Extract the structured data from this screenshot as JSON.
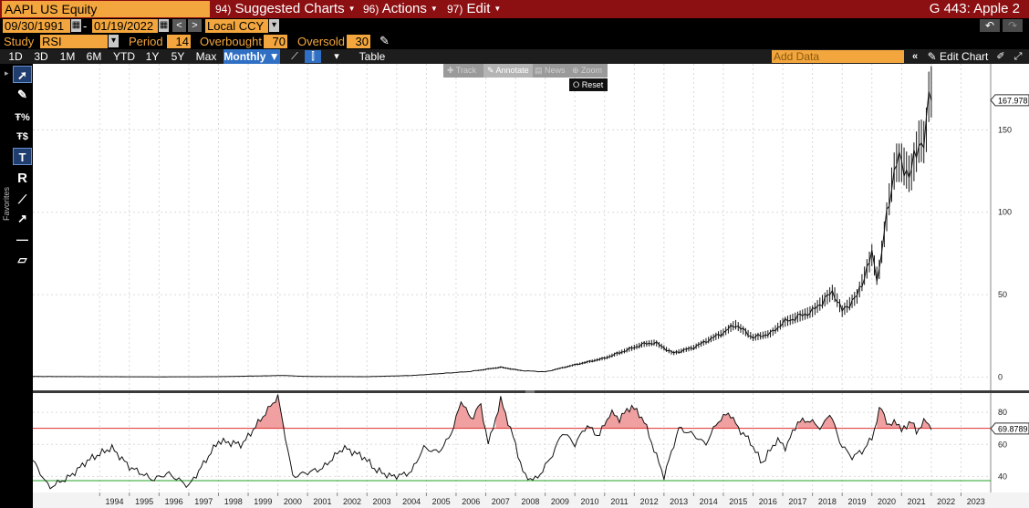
{
  "topbar": {
    "ticker": "AAPL US Equity",
    "menus": [
      {
        "num": "94)",
        "label": "Suggested Charts"
      },
      {
        "num": "96)",
        "label": "Actions"
      },
      {
        "num": "97)",
        "label": "Edit"
      }
    ],
    "app_name": "G 443: Apple 2"
  },
  "daterow": {
    "start_date": "09/30/1991",
    "separator": "-",
    "end_date": "01/19/2022",
    "currency": "Local CCY",
    "prev_icon": "<",
    "next_icon": ">",
    "undo_icon": "undo-icon",
    "redo_icon": "redo-icon"
  },
  "studyrow": {
    "study_label": "Study",
    "study_value": "RSI",
    "period_label": "Period",
    "period_value": "14",
    "overbought_label": "Overbought",
    "overbought_value": "70",
    "oversold_label": "Oversold",
    "oversold_value": "30"
  },
  "periodrow": {
    "periods": [
      "1D",
      "3D",
      "1M",
      "6M",
      "YTD",
      "1Y",
      "5Y",
      "Max"
    ],
    "frequency": "Monthly ▼",
    "table_label": "Table",
    "add_data_placeholder": "Add Data",
    "edit_chart_label": "Edit Chart"
  },
  "left_toolbar": {
    "favorites_label": "Favorites",
    "tools": [
      "pointer-icon",
      "pen-icon",
      "percent-line-icon",
      "dollar-line-icon",
      "text-icon",
      "r-label-icon",
      "line-icon",
      "arrow-line-icon",
      "horizontal-line-icon",
      "channel-icon"
    ]
  },
  "chart_overlay": {
    "buttons": [
      "Track",
      "Annotate",
      "News",
      "Zoom"
    ],
    "active": "Annotate",
    "reset_label": "Reset"
  },
  "colors": {
    "accent": "#f3a63d",
    "topbar": "#8c0f12",
    "selected": "#2f6fc4",
    "overbought_line": "#e03030",
    "oversold_line": "#20a020",
    "fill_overbought": "#f0a0a0"
  },
  "chart_data": [
    {
      "type": "line",
      "title": "",
      "xlabel": "",
      "ylabel": "",
      "x_ticks": [
        "1994",
        "1995",
        "1996",
        "1997",
        "1998",
        "1999",
        "2000",
        "2001",
        "2002",
        "2003",
        "2004",
        "2005",
        "2006",
        "2007",
        "2008",
        "2009",
        "2010",
        "2011",
        "2012",
        "2013",
        "2014",
        "2015",
        "2016",
        "2017",
        "2018",
        "2019",
        "2020",
        "2021",
        "2022",
        "2023"
      ],
      "y_ticks": [
        0,
        50,
        100,
        150
      ],
      "ylim": [
        -8,
        190
      ],
      "last_value_label": "167.978",
      "x": [
        1991.75,
        1994,
        1996,
        1998,
        2000.2,
        2001,
        2003,
        2004.5,
        2005.5,
        2006.5,
        2007.5,
        2008.2,
        2009.0,
        2010.0,
        2011.0,
        2012.3,
        2012.7,
        2013.3,
        2014.0,
        2015.0,
        2015.4,
        2016.0,
        2016.6,
        2017.0,
        2018.0,
        2018.7,
        2019.0,
        2019.5,
        2020.0,
        2020.2,
        2020.6,
        2020.8,
        2021.0,
        2021.3,
        2021.6,
        2021.8,
        2021.95,
        2022.05
      ],
      "y": [
        0.4,
        0.3,
        0.2,
        0.3,
        1.0,
        0.4,
        0.3,
        1.0,
        2.2,
        3.5,
        6.0,
        4.0,
        3.2,
        7.5,
        11.5,
        20.0,
        21.0,
        14.5,
        18.0,
        27.0,
        32.0,
        24.0,
        26.5,
        33.0,
        40.0,
        52.0,
        40.0,
        49.0,
        74.0,
        59.0,
        110.0,
        130.0,
        130.0,
        122.0,
        144.0,
        142.0,
        178.0,
        168.0
      ]
    },
    {
      "type": "line",
      "title": "",
      "series": [
        {
          "name": "RSI",
          "values": [
            50,
            33,
            40,
            50,
            58,
            46,
            38,
            42,
            34,
            62,
            60,
            90,
            40,
            45,
            58,
            52,
            44,
            40,
            41,
            43,
            58,
            55,
            65,
            88,
            75,
            86,
            60,
            88,
            66,
            40,
            38,
            52,
            68,
            60,
            72,
            65,
            80,
            76,
            84,
            76,
            55,
            40,
            70,
            66,
            60,
            74,
            80,
            70,
            62,
            48,
            63,
            58,
            74,
            75,
            70,
            80,
            62,
            52,
            56,
            64,
            84,
            70,
            76,
            68,
            75,
            68,
            75,
            69.8789
          ]
        }
      ],
      "x": [
        1991.75,
        1992.3,
        1993.0,
        1993.6,
        1994.4,
        1995.0,
        1995.8,
        1996.3,
        1997.0,
        1998.0,
        1998.8,
        2000.0,
        2000.5,
        2001.5,
        2002.2,
        2002.9,
        2003.3,
        2003.8,
        2004.2,
        2004.5,
        2004.9,
        2005.4,
        2005.8,
        2006.2,
        2006.5,
        2006.8,
        2007.1,
        2007.5,
        2007.9,
        2008.3,
        2008.7,
        2009.2,
        2009.6,
        2010.0,
        2010.4,
        2010.8,
        2011.2,
        2011.5,
        2011.9,
        2012.3,
        2012.7,
        2013.0,
        2013.5,
        2014.0,
        2014.4,
        2014.8,
        2015.2,
        2015.5,
        2015.9,
        2016.3,
        2016.8,
        2017.1,
        2017.5,
        2017.9,
        2018.3,
        2018.6,
        2018.9,
        2019.3,
        2019.7,
        2020.0,
        2020.3,
        2020.6,
        2020.8,
        2021.0,
        2021.3,
        2021.5,
        2021.8,
        2022.05
      ],
      "y_ticks": [
        40,
        60,
        80
      ],
      "ylim": [
        30,
        92
      ],
      "overbought": 70,
      "oversold": 30,
      "last_value_label": "69.8789"
    }
  ]
}
